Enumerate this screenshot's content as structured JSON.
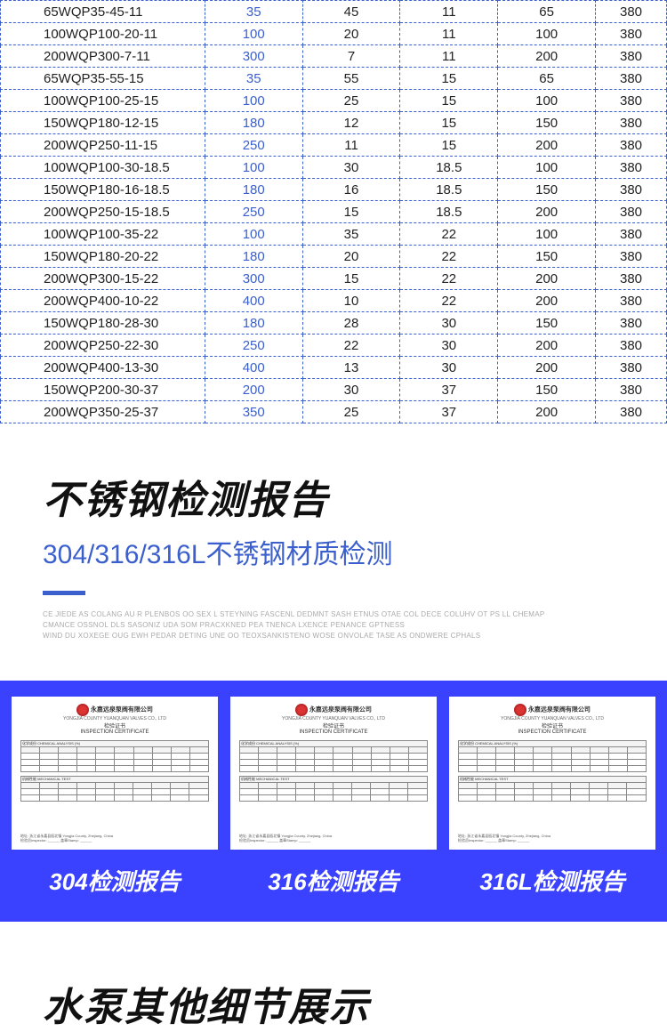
{
  "spec_table": {
    "rows": [
      [
        "65WQP35-45-11",
        "35",
        "45",
        "11",
        "65",
        "380"
      ],
      [
        "100WQP100-20-11",
        "100",
        "20",
        "11",
        "100",
        "380"
      ],
      [
        "200WQP300-7-11",
        "300",
        "7",
        "11",
        "200",
        "380"
      ],
      [
        "65WQP35-55-15",
        "35",
        "55",
        "15",
        "65",
        "380"
      ],
      [
        "100WQP100-25-15",
        "100",
        "25",
        "15",
        "100",
        "380"
      ],
      [
        "150WQP180-12-15",
        "180",
        "12",
        "15",
        "150",
        "380"
      ],
      [
        "200WQP250-11-15",
        "250",
        "11",
        "15",
        "200",
        "380"
      ],
      [
        "100WQP100-30-18.5",
        "100",
        "30",
        "18.5",
        "100",
        "380"
      ],
      [
        "150WQP180-16-18.5",
        "180",
        "16",
        "18.5",
        "150",
        "380"
      ],
      [
        "200WQP250-15-18.5",
        "250",
        "15",
        "18.5",
        "200",
        "380"
      ],
      [
        "100WQP100-35-22",
        "100",
        "35",
        "22",
        "100",
        "380"
      ],
      [
        "150WQP180-20-22",
        "180",
        "20",
        "22",
        "150",
        "380"
      ],
      [
        "200WQP300-15-22",
        "300",
        "15",
        "22",
        "200",
        "380"
      ],
      [
        "200WQP400-10-22",
        "400",
        "10",
        "22",
        "200",
        "380"
      ],
      [
        "150WQP180-28-30",
        "180",
        "28",
        "30",
        "150",
        "380"
      ],
      [
        "200WQP250-22-30",
        "250",
        "22",
        "30",
        "200",
        "380"
      ],
      [
        "200WQP400-13-30",
        "400",
        "13",
        "30",
        "200",
        "380"
      ],
      [
        "150WQP200-30-37",
        "200",
        "30",
        "37",
        "150",
        "380"
      ],
      [
        "200WQP350-25-37",
        "350",
        "25",
        "37",
        "200",
        "380"
      ]
    ],
    "col1_color": "#3b5fcc",
    "border_color": "#3b5fcc"
  },
  "inspection": {
    "title": "不锈钢检测报告",
    "subtitle": "304/316/316L不锈钢材质检测",
    "fine1": "CE JIEDE AS COLANG AU R PLENBOS OO SEX L STEYNING FASCENL DEDMNT SASH ETNUS OTAE COL DECE COLUHV OT PS LL CHEMAP",
    "fine2": "CMANCE OSSNOL DLS SASONIZ UDA SOM PRACXKNED PEA TNENCA LXENCE PENANCE GPTNESS",
    "fine3": "WIND DU XOXEGE OUG EWH PEDAR DETING UNE OO TEOXSANKISTENO WOSE ONVOLAE TASE AS ONDWERE CPHALS"
  },
  "reports": [
    {
      "label": "304检测报告"
    },
    {
      "label": "316检测报告"
    },
    {
      "label": "316L检测报告"
    }
  ],
  "cert_stub": {
    "company_cn": "永嘉远泉泵阀有限公司",
    "company_en": "YONGJIA COUNTY YUANQUAN VALVES CO., LTD",
    "title_cn": "检验证书",
    "title_en": "INSPECTION CERTIFICATE",
    "section1": "化学成份 CHEMICAL ANALYSIS (%)",
    "section2": "机械性能 MECHANICAL TEST",
    "addr": "地址: 浙江省永嘉县瓯北镇 Yongjia County, Zhejiang, China",
    "remark": "检验员Inspector: ______ 盖章Stamp: ______"
  },
  "bottom": {
    "title": "水泵其他细节展示"
  },
  "colors": {
    "brand_blue": "#3b5fcc",
    "band_bg": "#3b42ff",
    "text_dark": "#111"
  }
}
